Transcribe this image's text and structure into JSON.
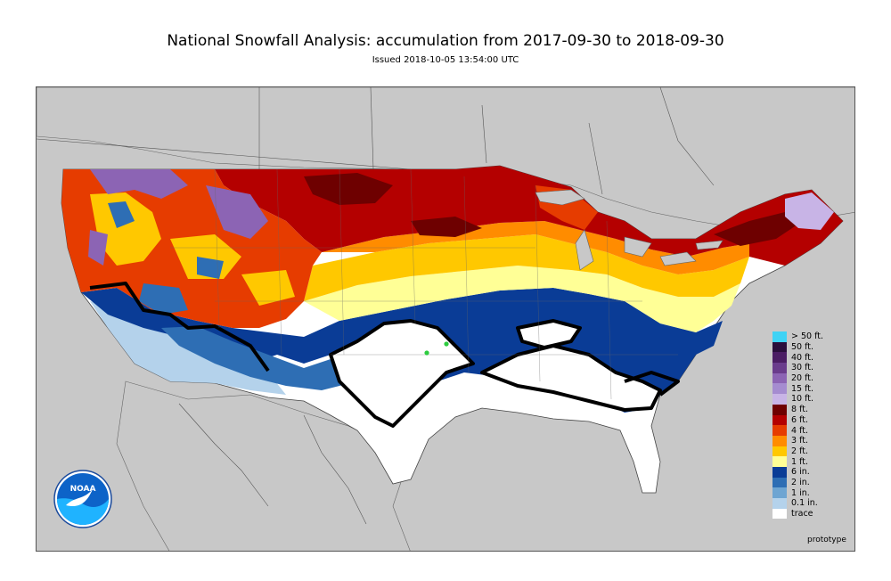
{
  "header": {
    "title": "National Snowfall Analysis: accumulation from 2017-09-30 to 2018-09-30",
    "subtitle": "Issued 2018-10-05 13:54:00 UTC"
  },
  "map": {
    "ocean_color": "#c8c8c8",
    "land_color": "#ffffff",
    "logo_text": "NOAA",
    "footer_label": "prototype"
  },
  "legend": {
    "items": [
      {
        "label": "> 50 ft.",
        "color": "#3fd3f5"
      },
      {
        "label": "50 ft.",
        "color": "#2a0f3c"
      },
      {
        "label": "40 ft.",
        "color": "#4b1d64"
      },
      {
        "label": "30 ft.",
        "color": "#6a3c8c"
      },
      {
        "label": "20 ft.",
        "color": "#8c64b4"
      },
      {
        "label": "15 ft.",
        "color": "#a58cd0"
      },
      {
        "label": "10 ft.",
        "color": "#c8b4e6"
      },
      {
        "label": "8 ft.",
        "color": "#6e0000"
      },
      {
        "label": "6 ft.",
        "color": "#b40000"
      },
      {
        "label": "4 ft.",
        "color": "#e63c00"
      },
      {
        "label": "3 ft.",
        "color": "#ff8c00"
      },
      {
        "label": "2 ft.",
        "color": "#ffc800"
      },
      {
        "label": "1 ft.",
        "color": "#ffff96"
      },
      {
        "label": "6 in.",
        "color": "#0a3c96"
      },
      {
        "label": "2 in.",
        "color": "#2e6eb4"
      },
      {
        "label": "1 in.",
        "color": "#6ea5d2"
      },
      {
        "label": "0.1 in.",
        "color": "#b4d2eb"
      },
      {
        "label": "trace",
        "color": "#ffffff"
      }
    ]
  }
}
